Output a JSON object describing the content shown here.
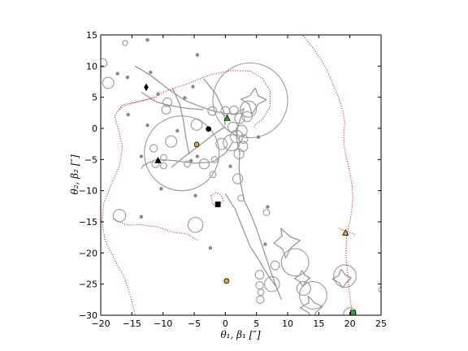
{
  "chart_data": {
    "type": "scatter",
    "xlabel": "θ₁, β₁ [″]",
    "ylabel": "θ₂, β₂ [″]",
    "xlim": [
      -20,
      25
    ],
    "ylim": [
      -30,
      15
    ],
    "xticks": [
      -20,
      -15,
      -10,
      -5,
      0,
      5,
      10,
      15,
      20,
      25
    ],
    "yticks": [
      -30,
      -25,
      -20,
      -15,
      -10,
      -5,
      0,
      5,
      10,
      15
    ],
    "grid": false,
    "colors": {
      "critical_curve": "#dd2222",
      "caustic": "#999999",
      "marker_yellow": "#e0b020",
      "marker_green": "#30a040",
      "marker_black": "#000000"
    },
    "critical_curves": [
      {
        "name": "",
        "points": [
          [
            -14.5,
            -29.8
          ],
          [
            -15.2,
            -27
          ],
          [
            -16.2,
            -24
          ],
          [
            -17.8,
            -21
          ],
          [
            -19.3,
            -18
          ],
          [
            -19.8,
            -15
          ],
          [
            -19.5,
            -12
          ],
          [
            -18.3,
            -9
          ],
          [
            -17,
            -6
          ],
          [
            -16.5,
            -3
          ],
          [
            -17.2,
            0
          ],
          [
            -17.8,
            2
          ],
          [
            -16.5,
            3.8
          ],
          [
            -14.5,
            4.2
          ],
          [
            -12,
            4.8
          ],
          [
            -9.5,
            6
          ],
          [
            -6,
            7.2
          ],
          [
            -2.5,
            8.6
          ],
          [
            1,
            9.3
          ],
          [
            4,
            9.2
          ],
          [
            6,
            8
          ],
          [
            7.2,
            6
          ],
          [
            7.2,
            3.5
          ],
          [
            6,
            1.5
          ],
          [
            5,
            0.8
          ],
          [
            4.5,
            0
          ]
        ]
      },
      {
        "name": "",
        "points": [
          [
            -18,
            -14.5
          ],
          [
            -16,
            -15.5
          ],
          [
            -13.5,
            -15.5
          ],
          [
            -11,
            -15.8
          ],
          [
            -8.5,
            -16.6
          ],
          [
            -6,
            -17
          ],
          [
            -4.5,
            -18
          ]
        ]
      },
      {
        "name": "",
        "points": [
          [
            -17,
            3
          ],
          [
            -16.5,
            3.5
          ],
          [
            -15,
            4
          ],
          [
            -13,
            4.5
          ],
          [
            -11,
            5
          ],
          [
            -10.5,
            6
          ]
        ]
      },
      {
        "name": "",
        "points": [
          [
            12.5,
            14.9
          ],
          [
            14,
            13
          ],
          [
            15.4,
            11
          ],
          [
            16.5,
            9
          ],
          [
            17.3,
            7
          ],
          [
            18.2,
            5
          ],
          [
            18.8,
            3
          ],
          [
            19.2,
            1
          ],
          [
            19,
            -1
          ],
          [
            19.1,
            -3
          ],
          [
            19.5,
            -5
          ],
          [
            20,
            -7
          ],
          [
            20.3,
            -9
          ],
          [
            20.5,
            -11
          ],
          [
            20.3,
            -13
          ],
          [
            20,
            -15
          ],
          [
            19.5,
            -17
          ],
          [
            19.4,
            -19
          ],
          [
            19.4,
            -21
          ],
          [
            19.6,
            -23
          ],
          [
            19.8,
            -25
          ],
          [
            20,
            -27
          ],
          [
            20.3,
            -29.2
          ]
        ]
      },
      {
        "name": "",
        "points": [
          [
            18.2,
            -16
          ],
          [
            18.8,
            -16.4
          ],
          [
            19.6,
            -16.5
          ],
          [
            20.4,
            -16.9
          ],
          [
            21,
            -17.2
          ]
        ]
      },
      {
        "name": "",
        "points": [
          [
            -2.3,
            -10.8
          ],
          [
            -1.5,
            -10.3
          ],
          [
            -0.8,
            -10.6
          ],
          [
            -0.3,
            -11.6
          ],
          [
            -1.1,
            -12.5
          ],
          [
            -2,
            -12.2
          ],
          [
            -2.3,
            -10.8
          ]
        ]
      }
    ],
    "caustics": [
      {
        "name": "",
        "points": [
          [
            -14.5,
            10
          ],
          [
            -12,
            8.5
          ],
          [
            -9,
            6.2
          ],
          [
            -6.5,
            4.5
          ],
          [
            -4,
            3.5
          ],
          [
            -2,
            2.8
          ],
          [
            0,
            2.4
          ],
          [
            1.5,
            2.3
          ],
          [
            3,
            3.2
          ]
        ]
      },
      {
        "name": "",
        "points": [
          [
            -13.5,
            5.8
          ],
          [
            -11,
            4.2
          ],
          [
            -8.5,
            3.6
          ],
          [
            -6,
            3.2
          ],
          [
            -3.5,
            3
          ]
        ]
      },
      {
        "name": "",
        "points": [
          [
            -3.5,
            8
          ],
          [
            -1.5,
            5.5
          ],
          [
            -0.3,
            3
          ],
          [
            0,
            0.5
          ]
        ]
      },
      {
        "name": "",
        "points": [
          [
            3,
            3.2
          ],
          [
            2,
            0.3
          ],
          [
            1.8,
            -1.5
          ],
          [
            2.3,
            -4
          ],
          [
            2.2,
            -6.5
          ],
          [
            2.5,
            -9
          ],
          [
            3,
            -11.5
          ],
          [
            4.2,
            -14
          ],
          [
            5.3,
            -17
          ],
          [
            6.3,
            -20
          ],
          [
            7.3,
            -23
          ],
          [
            8.2,
            -25.5
          ],
          [
            9,
            -27.5
          ]
        ]
      },
      {
        "name": "",
        "points": [
          [
            0,
            -10.5
          ],
          [
            1.6,
            -13
          ],
          [
            2.8,
            -16
          ],
          [
            4,
            -19
          ],
          [
            5.3,
            -21
          ],
          [
            6.8,
            -23.5
          ],
          [
            8.2,
            -25.5
          ]
        ]
      },
      {
        "name": "",
        "points": [
          [
            -11,
            -5
          ],
          [
            -8,
            -5.2
          ],
          [
            -5,
            -5.6
          ],
          [
            -2,
            -5.4
          ],
          [
            0,
            -4
          ],
          [
            1.2,
            -2.2
          ]
        ]
      },
      {
        "name": "",
        "points": [
          [
            -8.7,
            -6.3
          ],
          [
            -6.5,
            -4.5
          ],
          [
            -4.5,
            -3
          ],
          [
            -2.2,
            -1.2
          ],
          [
            0,
            0.3
          ]
        ]
      },
      {
        "name": "",
        "points": [
          [
            -11,
            -5
          ],
          [
            -12.3,
            -5.5
          ],
          [
            -13.2,
            -6
          ],
          [
            -13.5,
            -6.5
          ]
        ]
      },
      {
        "name": "",
        "points": [
          [
            -8.5,
            6.5
          ],
          [
            -7.3,
            3.8
          ],
          [
            -6.7,
            1
          ],
          [
            -6.3,
            -1.6
          ],
          [
            -5.8,
            -4.2
          ]
        ]
      },
      {
        "name": "",
        "points": [
          [
            4.8,
            6.5
          ],
          [
            5.3,
            5.2
          ],
          [
            6.6,
            4.6
          ],
          [
            5.3,
            3.9
          ],
          [
            4.3,
            2.3
          ],
          [
            3.8,
            3.9
          ],
          [
            2.5,
            4.7
          ],
          [
            3.9,
            5.2
          ],
          [
            4.8,
            6.5
          ]
        ]
      },
      {
        "name": "",
        "points": [
          [
            8.9,
            -16
          ],
          [
            10.4,
            -17.4
          ],
          [
            12,
            -18
          ],
          [
            10.5,
            -19.2
          ],
          [
            9.7,
            -20.8
          ],
          [
            9.2,
            -19.4
          ],
          [
            7.8,
            -18.4
          ],
          [
            9.1,
            -17.3
          ],
          [
            8.9,
            -16
          ]
        ]
      },
      {
        "name": "",
        "points": [
          [
            13.3,
            -26.9
          ],
          [
            14.3,
            -28
          ],
          [
            15.6,
            -28.6
          ],
          [
            14.5,
            -29.6
          ],
          [
            13.9,
            -31
          ],
          [
            13.4,
            -29.6
          ],
          [
            12,
            -28.8
          ],
          [
            13.4,
            -28
          ],
          [
            13.3,
            -26.9
          ]
        ]
      },
      {
        "name": "",
        "points": [
          [
            12.3,
            -22.8
          ],
          [
            12.8,
            -23.6
          ],
          [
            13.6,
            -24
          ],
          [
            12.9,
            -24.6
          ],
          [
            12.4,
            -25.4
          ],
          [
            12,
            -24.6
          ],
          [
            11.1,
            -24.1
          ],
          [
            11.9,
            -23.6
          ],
          [
            12.3,
            -22.8
          ]
        ]
      },
      {
        "name": "",
        "points": [
          [
            18.6,
            -22.6
          ],
          [
            19.3,
            -23.6
          ],
          [
            20.2,
            -24
          ],
          [
            19.4,
            -24.8
          ],
          [
            18.8,
            -25.6
          ],
          [
            18.3,
            -24.8
          ],
          [
            17.2,
            -24.2
          ],
          [
            18.2,
            -23.6
          ],
          [
            18.6,
            -22.6
          ]
        ]
      }
    ],
    "circles": [
      {
        "x": 4,
        "y": 4.5,
        "r": 6
      },
      {
        "x": -7,
        "y": -4,
        "r": 6
      },
      {
        "x": 11.2,
        "y": -21.5,
        "r": 2.2
      },
      {
        "x": 14.1,
        "y": -26.8,
        "r": 2.2
      },
      {
        "x": 12.6,
        "y": -25.7,
        "r": 1.1
      },
      {
        "x": 19.2,
        "y": -23.7,
        "r": 1.8
      },
      {
        "x": 5.5,
        "y": -23.5,
        "r": 0.7
      },
      {
        "x": 5.5,
        "y": -25.2,
        "r": 0.6
      },
      {
        "x": 5.7,
        "y": -26.3,
        "r": 0.5
      },
      {
        "x": 5.6,
        "y": -27.5,
        "r": 0.6
      },
      {
        "x": 7.5,
        "y": -25,
        "r": 1.2
      },
      {
        "x": 8,
        "y": -22,
        "r": 0.7
      },
      {
        "x": -4.8,
        "y": -15.5,
        "r": 1.2
      },
      {
        "x": -17,
        "y": -14,
        "r": 1
      },
      {
        "x": 6.6,
        "y": -13.5,
        "r": 0.5
      },
      {
        "x": -19.7,
        "y": 10.5,
        "r": 0.7
      },
      {
        "x": -18.8,
        "y": 7.3,
        "r": 0.9
      },
      {
        "x": -9.3,
        "y": 4.2,
        "r": 0.7
      },
      {
        "x": -9.5,
        "y": 3,
        "r": 0.7
      },
      {
        "x": -4.6,
        "y": 0.6,
        "r": 0.9
      },
      {
        "x": -2.1,
        "y": 2.8,
        "r": 0.7
      },
      {
        "x": 0,
        "y": 2.8,
        "r": 0.7
      },
      {
        "x": 1.4,
        "y": 2.9,
        "r": 0.7
      },
      {
        "x": 3.7,
        "y": 3.1,
        "r": 1.3
      },
      {
        "x": 3.5,
        "y": 1.9,
        "r": 0.8
      },
      {
        "x": 2.3,
        "y": 1.6,
        "r": 0.8
      },
      {
        "x": 1.2,
        "y": 0.2,
        "r": 0.8
      },
      {
        "x": 2.6,
        "y": -0.4,
        "r": 0.9
      },
      {
        "x": 1,
        "y": -2.3,
        "r": 1.3
      },
      {
        "x": 1.8,
        "y": -1.3,
        "r": 1
      },
      {
        "x": 2.8,
        "y": -2.9,
        "r": 0.8
      },
      {
        "x": 2.9,
        "y": -1.7,
        "r": 0.7
      },
      {
        "x": 2.2,
        "y": -4.1,
        "r": 0.8
      },
      {
        "x": -0.6,
        "y": -2.5,
        "r": 0.9
      },
      {
        "x": -1.7,
        "y": -5,
        "r": 0.5
      },
      {
        "x": -3.4,
        "y": -5.7,
        "r": 0.8
      },
      {
        "x": -6.1,
        "y": -5.7,
        "r": 0.5
      },
      {
        "x": -8.7,
        "y": -2.1,
        "r": 0.9
      },
      {
        "x": -11.5,
        "y": -3.2,
        "r": 0.6
      },
      {
        "x": -9.9,
        "y": -4.7,
        "r": 0.5
      },
      {
        "x": -9.9,
        "y": -6,
        "r": 0.5
      },
      {
        "x": -11.2,
        "y": -5.7,
        "r": 0.6
      },
      {
        "x": 2,
        "y": -8.1,
        "r": 0.8
      },
      {
        "x": 2.5,
        "y": -11.2,
        "r": 0.5
      },
      {
        "x": -2,
        "y": -7.4,
        "r": 0.5
      },
      {
        "x": -16.1,
        "y": 13.7,
        "r": 0.4
      },
      {
        "x": 25,
        "y": -25.9,
        "r": 0.4
      },
      {
        "x": 20,
        "y": -29.8,
        "r": 1
      }
    ],
    "dots": [
      {
        "x": -12.5,
        "y": 14.2
      },
      {
        "x": -4.5,
        "y": 11.8
      },
      {
        "x": -12,
        "y": 9
      },
      {
        "x": -17.3,
        "y": 8.8
      },
      {
        "x": -15.7,
        "y": 8.2
      },
      {
        "x": -5.2,
        "y": 6.7
      },
      {
        "x": -10.8,
        "y": 5.5
      },
      {
        "x": -6.5,
        "y": 4.9
      },
      {
        "x": -12.5,
        "y": 0.5
      },
      {
        "x": -15.6,
        "y": 2.2
      },
      {
        "x": 5.3,
        "y": -1.4
      },
      {
        "x": -7.7,
        "y": -0.4
      },
      {
        "x": -13.5,
        "y": -4.5
      },
      {
        "x": -10.3,
        "y": -9.7
      },
      {
        "x": -5.5,
        "y": -5.2
      },
      {
        "x": -4.5,
        "y": -4.5
      },
      {
        "x": 0.8,
        "y": -6.1
      },
      {
        "x": 6.8,
        "y": -12.6
      },
      {
        "x": -13.5,
        "y": -14.2
      },
      {
        "x": 6.4,
        "y": -18.6
      },
      {
        "x": -2.4,
        "y": -19.2
      },
      {
        "x": -4.8,
        "y": -10.8
      }
    ],
    "markers": [
      {
        "shape": "circle",
        "color": "black",
        "x": -2.7,
        "y": -0.1
      },
      {
        "shape": "triangle",
        "color": "black",
        "x": -10.8,
        "y": -5.2
      },
      {
        "shape": "square",
        "color": "black",
        "x": -1.2,
        "y": -12.2
      },
      {
        "shape": "diamond",
        "color": "black",
        "x": -12.7,
        "y": 6.6
      },
      {
        "shape": "triangle",
        "color": "green",
        "x": 0.3,
        "y": 1.6
      },
      {
        "shape": "circle",
        "color": "yellow",
        "x": -4.6,
        "y": -2.6
      },
      {
        "shape": "circle",
        "color": "yellow",
        "x": 0.2,
        "y": -24.5
      },
      {
        "shape": "triangle",
        "color": "yellow",
        "x": 19.3,
        "y": -16.8
      },
      {
        "shape": "square",
        "color": "green",
        "x": 20.5,
        "y": -29.6
      }
    ]
  }
}
